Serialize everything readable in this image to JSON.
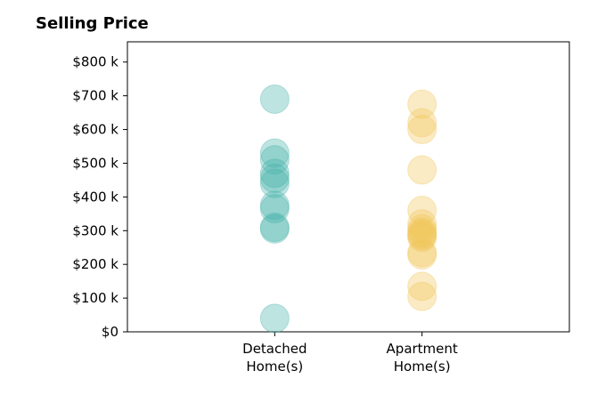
{
  "chart_data": {
    "type": "scatter",
    "title": "Selling Price",
    "xlabel": "",
    "ylabel": "",
    "categories": [
      "Detached\nHome(s)",
      "Apartment\nHome(s)"
    ],
    "ylim": [
      0,
      860
    ],
    "y_ticks": [
      0,
      100,
      200,
      300,
      400,
      500,
      600,
      700,
      800
    ],
    "y_tick_labels": [
      "$0",
      "$100 k",
      "$200 k",
      "$300 k",
      "$400 k",
      "$500 k",
      "$600 k",
      "$700 k",
      "$800 k"
    ],
    "grid": false,
    "series": [
      {
        "category": "Detached\nHome(s)",
        "color": "#46b3a8",
        "values": [
          690,
          530,
          510,
          470,
          455,
          440,
          375,
          365,
          310,
          305,
          40
        ]
      },
      {
        "category": "Apartment\nHome(s)",
        "color": "#f0c75a",
        "values": [
          675,
          620,
          600,
          480,
          360,
          320,
          305,
          295,
          290,
          285,
          280,
          235,
          228,
          135,
          105
        ]
      }
    ]
  }
}
